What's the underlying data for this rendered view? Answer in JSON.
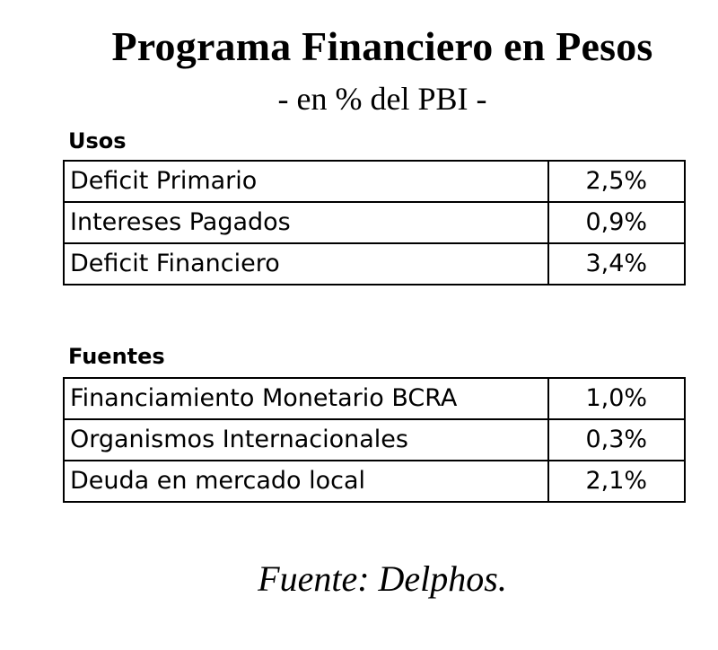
{
  "title": "Programa Financiero en Pesos",
  "subtitle": "- en % del PBI -",
  "usos": {
    "heading": "Usos",
    "rows": [
      {
        "label": "Deficit Primario",
        "value": "2,5%"
      },
      {
        "label": "Intereses Pagados",
        "value": "0,9%"
      },
      {
        "label": "Deficit Financiero",
        "value": "3,4%"
      }
    ]
  },
  "fuentes": {
    "heading": "Fuentes",
    "rows": [
      {
        "label": "Financiamiento Monetario BCRA",
        "value": "1,0%"
      },
      {
        "label": "Organismos Internacionales",
        "value": "0,3%"
      },
      {
        "label": "Deuda en mercado local",
        "value": "2,1%"
      }
    ]
  },
  "source": "Fuente: Delphos."
}
